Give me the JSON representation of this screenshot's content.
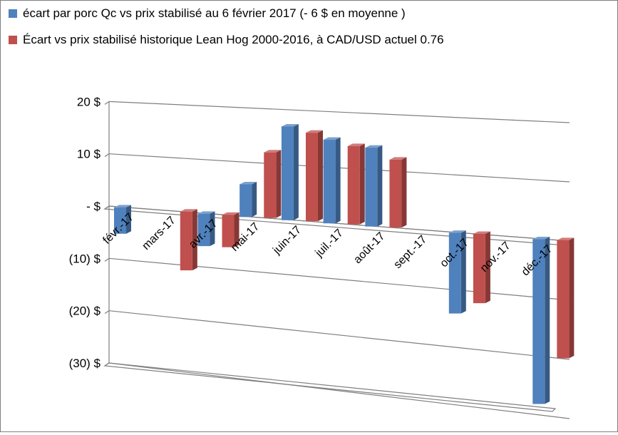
{
  "chart_data": {
    "type": "bar",
    "categories": [
      "févr.-17",
      "mars-17",
      "avr.-17",
      "mai-17",
      "juin-17",
      "juil.-17",
      "août-17",
      "sept.-17",
      "oct.-17",
      "nov.-17",
      "déc.-17"
    ],
    "series": [
      {
        "name": "écart par porc Qc vs prix stabilisé  au 6 février 2017 (- 6 $ en moyenne )",
        "color": "#4f81bd",
        "values": [
          -5,
          null,
          -6,
          6,
          17,
          15,
          14,
          null,
          -14,
          null,
          -28
        ]
      },
      {
        "name": "Écart vs prix stabilisé     historique Lean Hog 2000-2016, à CAD/USD actuel 0.76",
        "color": "#c0504d",
        "values": [
          null,
          -11,
          -6,
          12,
          16,
          14,
          12,
          null,
          -12,
          null,
          -20
        ]
      }
    ],
    "ylim": [
      -30,
      20
    ],
    "yticks": [
      {
        "value": 20,
        "label": "20  $"
      },
      {
        "value": 10,
        "label": "10  $"
      },
      {
        "value": 0,
        "label": "-   $"
      },
      {
        "value": -10,
        "label": "(10) $"
      },
      {
        "value": -20,
        "label": "(20) $"
      },
      {
        "value": -30,
        "label": "(30) $"
      }
    ],
    "grid": true,
    "legend": "top-left"
  }
}
